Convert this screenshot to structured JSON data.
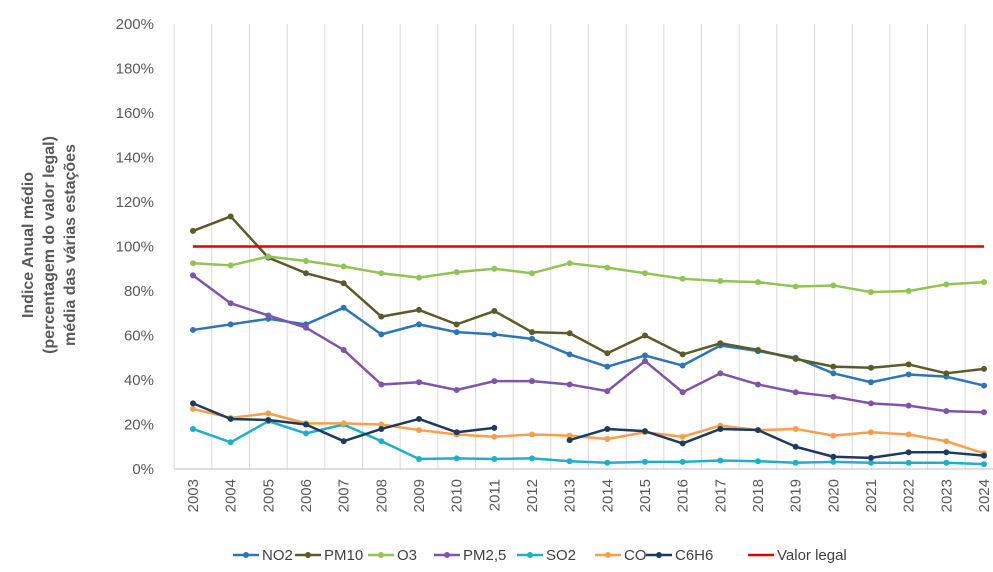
{
  "chart_data": {
    "type": "line",
    "title": "",
    "ylabel_lines": [
      "Indice Anual médio",
      "(percentagem do valor legal)",
      "média das várias estações"
    ],
    "xlabel": "",
    "categories": [
      "2003",
      "2004",
      "2005",
      "2006",
      "2007",
      "2008",
      "2009",
      "2010",
      "2011",
      "2012",
      "2013",
      "2014",
      "2015",
      "2016",
      "2017",
      "2018",
      "2019",
      "2020",
      "2021",
      "2022",
      "2023",
      "2024"
    ],
    "ylim": [
      0,
      200
    ],
    "yticks": [
      0,
      20,
      40,
      60,
      80,
      100,
      120,
      140,
      160,
      180,
      200
    ],
    "ytick_labels": [
      "0%",
      "20%",
      "40%",
      "60%",
      "80%",
      "100%",
      "120%",
      "140%",
      "160%",
      "180%",
      "200%"
    ],
    "grid": "vertical",
    "legend_position": "bottom",
    "series": [
      {
        "name": "NO2",
        "color": "#2E75B6",
        "values": [
          62.5,
          65,
          67.5,
          65,
          72.5,
          60.5,
          65,
          61.5,
          60.5,
          58.5,
          51.5,
          46,
          51,
          46.5,
          55.5,
          53,
          50,
          43,
          39,
          42.5,
          41.5,
          37.5
        ]
      },
      {
        "name": "PM10",
        "color": "#5A5A2A",
        "values": [
          107,
          113.5,
          95,
          88,
          83.5,
          68.5,
          71.5,
          65,
          71,
          61.5,
          61,
          52,
          60,
          51.5,
          56.5,
          53.5,
          49.5,
          46,
          45.5,
          47,
          43,
          45
        ]
      },
      {
        "name": "O3",
        "color": "#92C353",
        "values": [
          92.5,
          91.5,
          95.5,
          93.5,
          91,
          88,
          86,
          88.5,
          90,
          88,
          92.5,
          90.5,
          88,
          85.5,
          84.5,
          84,
          82,
          82.5,
          79.5,
          80,
          83,
          84
        ]
      },
      {
        "name": "PM2,5",
        "color": "#7F55A8",
        "values": [
          87,
          74.5,
          69,
          63.5,
          53.5,
          38,
          39,
          35.5,
          39.5,
          39.5,
          38,
          35,
          48.5,
          34.5,
          43,
          38,
          34.5,
          32.5,
          29.5,
          28.5,
          26,
          25.5
        ]
      },
      {
        "name": "SO2",
        "color": "#1FB0C8",
        "values": [
          18,
          12,
          21.5,
          16,
          20,
          12.5,
          4.5,
          4.8,
          4.5,
          4.8,
          3.5,
          2.8,
          3.2,
          3.2,
          3.8,
          3.5,
          2.8,
          3.2,
          2.8,
          2.8,
          2.8,
          2.2
        ]
      },
      {
        "name": "CO",
        "color": "#F7A04B",
        "values": [
          27,
          23,
          25,
          20.5,
          20.5,
          20,
          17.5,
          15.5,
          14.5,
          15.5,
          15,
          13.5,
          16.5,
          14.5,
          19.5,
          17.5,
          18,
          15,
          16.5,
          15.5,
          12.5,
          7
        ]
      },
      {
        "name": "C6H6",
        "color": "#1F3A5F",
        "values": [
          29.5,
          22.5,
          22,
          20,
          12.5,
          18,
          22.5,
          16.5,
          18.5,
          null,
          13,
          18,
          17,
          11.5,
          18,
          17.5,
          10,
          5.5,
          5,
          7.5,
          7.5,
          6
        ]
      },
      {
        "name": "Valor legal",
        "color": "#E00000",
        "values": [
          100,
          100,
          100,
          100,
          100,
          100,
          100,
          100,
          100,
          100,
          100,
          100,
          100,
          100,
          100,
          100,
          100,
          100,
          100,
          100,
          100,
          100
        ]
      }
    ]
  }
}
